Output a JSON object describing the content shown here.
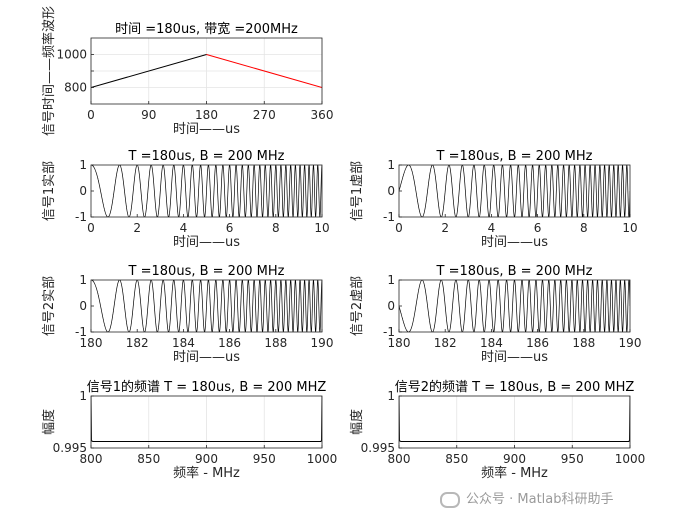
{
  "chart_data": [
    {
      "id": "freq",
      "type": "line",
      "title": "时间 =180us, 带宽 =200MHz",
      "xlabel": "时间——us",
      "ylabel": "信号时间——频率波形",
      "xlim": [
        0,
        360
      ],
      "ylim": [
        700,
        1100
      ],
      "xticks": [
        0,
        90,
        180,
        270,
        360
      ],
      "yticks": [
        800,
        900,
        1000
      ],
      "ytick_labels": [
        "800",
        "",
        "1000"
      ],
      "grid": true,
      "series": [
        {
          "color": "#000000",
          "x": [
            0,
            180
          ],
          "y": [
            800,
            1000
          ]
        },
        {
          "color": "#ff0000",
          "x": [
            180,
            360
          ],
          "y": [
            1000,
            800
          ]
        }
      ]
    },
    {
      "id": "s1re",
      "type": "line",
      "title": "T =180us, B = 200 MHz",
      "xlabel": "时间——us",
      "ylabel": "信号1实部",
      "xlim": [
        0,
        10
      ],
      "ylim": [
        -1,
        1
      ],
      "xticks": [
        0,
        2,
        4,
        6,
        8,
        10
      ],
      "yticks": [
        -1,
        0,
        1
      ],
      "grid": false,
      "signal": {
        "kind": "chirp",
        "phase": "cos",
        "f0": 0.5,
        "f1": 5.5,
        "t0": 0,
        "t1": 10
      }
    },
    {
      "id": "s1im",
      "type": "line",
      "title": "T =180us, B = 200 MHz",
      "xlabel": "时间——us",
      "ylabel": "信号1虚部",
      "xlim": [
        0,
        10
      ],
      "ylim": [
        -1,
        1
      ],
      "xticks": [
        0,
        2,
        4,
        6,
        8,
        10
      ],
      "yticks": [
        -1,
        0,
        1
      ],
      "grid": false,
      "signal": {
        "kind": "chirp",
        "phase": "sin",
        "f0": 0.5,
        "f1": 5.5,
        "t0": 0,
        "t1": 10
      }
    },
    {
      "id": "s2re",
      "type": "line",
      "title": "T =180us, B = 200 MHz",
      "xlabel": "时间——us",
      "ylabel": "信号2实部",
      "xlim": [
        180,
        190
      ],
      "ylim": [
        -1,
        1
      ],
      "xticks": [
        180,
        182,
        184,
        186,
        188,
        190
      ],
      "yticks": [
        -1,
        0,
        1
      ],
      "grid": false,
      "signal": {
        "kind": "chirp",
        "phase": "cos",
        "f0": 0.5,
        "f1": 5.5,
        "t0": 180,
        "t1": 190
      }
    },
    {
      "id": "s2im",
      "type": "line",
      "title": "T =180us, B = 200 MHz",
      "xlabel": "时间——us",
      "ylabel": "信号2虚部",
      "xlim": [
        180,
        190
      ],
      "ylim": [
        -1,
        1
      ],
      "xticks": [
        180,
        182,
        184,
        186,
        188,
        190
      ],
      "yticks": [
        -1,
        0,
        1
      ],
      "grid": false,
      "signal": {
        "kind": "chirp",
        "phase": "-sin",
        "f0": 0.5,
        "f1": 5.5,
        "t0": 180,
        "t1": 190
      }
    },
    {
      "id": "sp1",
      "type": "line",
      "title": "信号1的频谱 T = 180us, B = 200 MHZ",
      "xlabel": "频率 - MHz",
      "ylabel": "幅度",
      "xlim": [
        800,
        1000
      ],
      "ylim": [
        0.995,
        1
      ],
      "xticks": [
        800,
        850,
        900,
        950,
        1000
      ],
      "yticks": [
        0.995,
        1
      ],
      "grid": true,
      "series": [
        {
          "color": "#000000",
          "x": [
            800,
            800.4,
            801,
            802,
            999,
            999.6,
            1000
          ],
          "y": [
            1,
            0.99575,
            0.99565,
            0.99563,
            0.99563,
            0.99575,
            1
          ]
        }
      ]
    },
    {
      "id": "sp2",
      "type": "line",
      "title": "信号2的频谱 T = 180us, B = 200 MHZ",
      "xlabel": "频率 - MHz",
      "ylabel": "幅度",
      "xlim": [
        800,
        1000
      ],
      "ylim": [
        0.995,
        1
      ],
      "xticks": [
        800,
        850,
        900,
        950,
        1000
      ],
      "yticks": [
        0.995,
        1
      ],
      "grid": true,
      "series": [
        {
          "color": "#000000",
          "x": [
            800,
            800.4,
            801,
            802,
            999,
            999.6,
            1000
          ],
          "y": [
            1,
            0.99575,
            0.99565,
            0.99563,
            0.99563,
            0.99575,
            1
          ]
        }
      ]
    }
  ],
  "watermark": {
    "text": "公众号 · Matlab科研助手",
    "icon": "wechat-icon"
  }
}
